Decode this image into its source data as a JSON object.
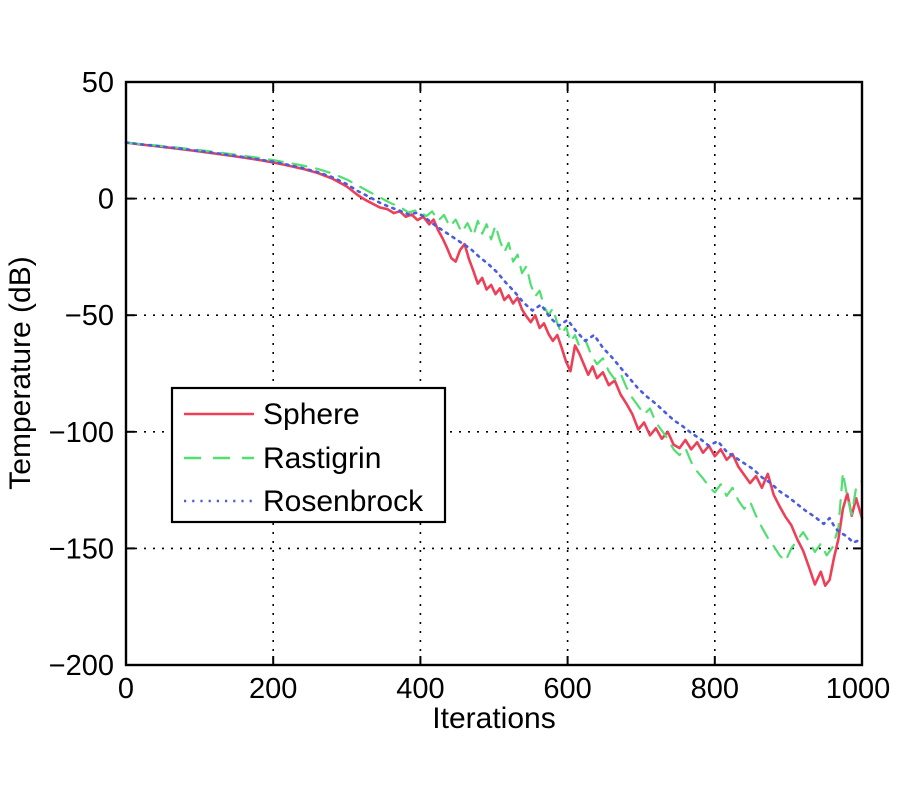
{
  "figure": {
    "background": "#ffffff",
    "grid_color": "#000000",
    "axis_color": "#000000"
  },
  "chart_data": {
    "type": "line",
    "title": "",
    "xlabel": "Iterations",
    "ylabel": "Temperature (dB)",
    "xlim": [
      0,
      1000
    ],
    "ylim": [
      -200,
      50
    ],
    "xticks": {
      "values": [
        0,
        200,
        400,
        600,
        800,
        1000
      ],
      "labels": [
        "0",
        "200",
        "400",
        "600",
        "800",
        "1000"
      ]
    },
    "yticks": {
      "values": [
        50,
        0,
        -50,
        -100,
        -150,
        -200
      ],
      "labels": [
        "50",
        "0",
        "−50",
        "−100",
        "−150",
        "−200"
      ]
    },
    "grid": true,
    "legend": {
      "position": "inside-left",
      "border": "#000000",
      "background": "#ffffff"
    },
    "series": [
      {
        "name": "Sphere",
        "color": "#ed4058",
        "style": "solid",
        "points": [
          [
            0,
            24
          ],
          [
            20,
            23.2
          ],
          [
            40,
            22.5
          ],
          [
            60,
            21.8
          ],
          [
            80,
            21.0
          ],
          [
            100,
            20.2
          ],
          [
            120,
            19.4
          ],
          [
            140,
            18.5
          ],
          [
            160,
            17.6
          ],
          [
            180,
            16.6
          ],
          [
            200,
            15.5
          ],
          [
            220,
            14.2
          ],
          [
            240,
            12.8
          ],
          [
            260,
            11.0
          ],
          [
            280,
            8.6
          ],
          [
            300,
            5.2
          ],
          [
            315,
            1.5
          ],
          [
            325,
            -0.5
          ],
          [
            335,
            -2.2
          ],
          [
            345,
            -3.8
          ],
          [
            355,
            -4.5
          ],
          [
            364,
            -6.2
          ],
          [
            372,
            -5.4
          ],
          [
            380,
            -7.8
          ],
          [
            388,
            -6.8
          ],
          [
            396,
            -9.2
          ],
          [
            404,
            -7.8
          ],
          [
            412,
            -11.0
          ],
          [
            418,
            -9.0
          ],
          [
            424,
            -13.5
          ],
          [
            430,
            -17.0
          ],
          [
            436,
            -21.0
          ],
          [
            442,
            -25.5
          ],
          [
            448,
            -27.0
          ],
          [
            454,
            -22.0
          ],
          [
            460,
            -19.5
          ],
          [
            466,
            -26.0
          ],
          [
            472,
            -31.0
          ],
          [
            478,
            -36.5
          ],
          [
            484,
            -34.0
          ],
          [
            490,
            -39.0
          ],
          [
            496,
            -37.0
          ],
          [
            502,
            -41.0
          ],
          [
            508,
            -38.5
          ],
          [
            514,
            -43.5
          ],
          [
            520,
            -41.5
          ],
          [
            526,
            -45.0
          ],
          [
            532,
            -42.5
          ],
          [
            538,
            -47.5
          ],
          [
            544,
            -50.5
          ],
          [
            550,
            -53.0
          ],
          [
            556,
            -50.0
          ],
          [
            562,
            -55.5
          ],
          [
            568,
            -53.5
          ],
          [
            574,
            -58.0
          ],
          [
            580,
            -61.0
          ],
          [
            586,
            -58.5
          ],
          [
            592,
            -64.0
          ],
          [
            598,
            -70.0
          ],
          [
            604,
            -74.0
          ],
          [
            610,
            -63.0
          ],
          [
            616,
            -66.5
          ],
          [
            622,
            -71.0
          ],
          [
            628,
            -75.5
          ],
          [
            634,
            -72.0
          ],
          [
            640,
            -77.0
          ],
          [
            648,
            -74.5
          ],
          [
            656,
            -80.0
          ],
          [
            664,
            -78.0
          ],
          [
            672,
            -84.0
          ],
          [
            680,
            -88.0
          ],
          [
            688,
            -92.5
          ],
          [
            696,
            -99.0
          ],
          [
            704,
            -96.0
          ],
          [
            712,
            -101.5
          ],
          [
            720,
            -98.5
          ],
          [
            728,
            -103.0
          ],
          [
            736,
            -100.0
          ],
          [
            744,
            -105.5
          ],
          [
            752,
            -107.0
          ],
          [
            760,
            -103.5
          ],
          [
            768,
            -107.5
          ],
          [
            776,
            -104.5
          ],
          [
            784,
            -109.0
          ],
          [
            792,
            -106.0
          ],
          [
            800,
            -110.5
          ],
          [
            808,
            -107.5
          ],
          [
            816,
            -112.0
          ],
          [
            824,
            -109.5
          ],
          [
            832,
            -115.0
          ],
          [
            840,
            -118.5
          ],
          [
            848,
            -122.0
          ],
          [
            856,
            -119.0
          ],
          [
            864,
            -124.0
          ],
          [
            872,
            -118.0
          ],
          [
            880,
            -127.0
          ],
          [
            888,
            -132.0
          ],
          [
            896,
            -136.5
          ],
          [
            904,
            -140.0
          ],
          [
            912,
            -146.0
          ],
          [
            920,
            -151.0
          ],
          [
            928,
            -158.0
          ],
          [
            936,
            -165.5
          ],
          [
            944,
            -160.0
          ],
          [
            950,
            -166.0
          ],
          [
            956,
            -163.5
          ],
          [
            962,
            -154.0
          ],
          [
            968,
            -146.0
          ],
          [
            974,
            -133.0
          ],
          [
            980,
            -126.5
          ],
          [
            986,
            -136.0
          ],
          [
            992,
            -128.5
          ],
          [
            1000,
            -137.0
          ]
        ]
      },
      {
        "name": "Rastigrin",
        "color": "#52df72",
        "style": "dashed",
        "points": [
          [
            0,
            24
          ],
          [
            20,
            23.4
          ],
          [
            40,
            22.8
          ],
          [
            60,
            22.2
          ],
          [
            80,
            21.5
          ],
          [
            100,
            20.8
          ],
          [
            120,
            20.0
          ],
          [
            140,
            19.2
          ],
          [
            160,
            18.4
          ],
          [
            180,
            17.5
          ],
          [
            200,
            16.5
          ],
          [
            220,
            15.4
          ],
          [
            240,
            14.2
          ],
          [
            260,
            12.8
          ],
          [
            280,
            10.8
          ],
          [
            300,
            8.2
          ],
          [
            315,
            5.6
          ],
          [
            330,
            3.0
          ],
          [
            345,
            0.5
          ],
          [
            360,
            -2.0
          ],
          [
            372,
            -3.5
          ],
          [
            384,
            -6.0
          ],
          [
            396,
            -4.8
          ],
          [
            408,
            -7.5
          ],
          [
            416,
            -5.5
          ],
          [
            424,
            -9.5
          ],
          [
            432,
            -7.0
          ],
          [
            440,
            -12.0
          ],
          [
            448,
            -9.0
          ],
          [
            456,
            -14.5
          ],
          [
            464,
            -10.5
          ],
          [
            472,
            -16.0
          ],
          [
            478,
            -9.5
          ],
          [
            484,
            -15.0
          ],
          [
            490,
            -11.0
          ],
          [
            496,
            -17.5
          ],
          [
            502,
            -11.5
          ],
          [
            508,
            -18.0
          ],
          [
            514,
            -23.0
          ],
          [
            520,
            -19.0
          ],
          [
            526,
            -27.0
          ],
          [
            532,
            -24.0
          ],
          [
            538,
            -32.0
          ],
          [
            544,
            -29.0
          ],
          [
            550,
            -37.0
          ],
          [
            556,
            -42.0
          ],
          [
            562,
            -39.5
          ],
          [
            568,
            -46.0
          ],
          [
            574,
            -50.0
          ],
          [
            580,
            -47.0
          ],
          [
            586,
            -53.5
          ],
          [
            592,
            -58.0
          ],
          [
            598,
            -55.0
          ],
          [
            604,
            -61.5
          ],
          [
            610,
            -58.5
          ],
          [
            616,
            -63.5
          ],
          [
            624,
            -60.5
          ],
          [
            632,
            -67.0
          ],
          [
            640,
            -71.0
          ],
          [
            648,
            -68.5
          ],
          [
            656,
            -74.0
          ],
          [
            664,
            -77.5
          ],
          [
            672,
            -75.0
          ],
          [
            680,
            -81.0
          ],
          [
            688,
            -85.5
          ],
          [
            696,
            -89.0
          ],
          [
            704,
            -92.5
          ],
          [
            712,
            -90.0
          ],
          [
            720,
            -96.0
          ],
          [
            728,
            -99.5
          ],
          [
            736,
            -103.0
          ],
          [
            744,
            -107.5
          ],
          [
            752,
            -110.0
          ],
          [
            760,
            -107.0
          ],
          [
            768,
            -113.0
          ],
          [
            776,
            -117.0
          ],
          [
            784,
            -120.0
          ],
          [
            792,
            -123.5
          ],
          [
            800,
            -126.0
          ],
          [
            808,
            -122.5
          ],
          [
            816,
            -127.5
          ],
          [
            824,
            -124.0
          ],
          [
            832,
            -129.5
          ],
          [
            840,
            -133.0
          ],
          [
            848,
            -130.0
          ],
          [
            856,
            -136.0
          ],
          [
            864,
            -141.0
          ],
          [
            872,
            -145.5
          ],
          [
            880,
            -149.0
          ],
          [
            888,
            -153.0
          ],
          [
            896,
            -155.5
          ],
          [
            904,
            -150.0
          ],
          [
            912,
            -146.5
          ],
          [
            920,
            -143.0
          ],
          [
            928,
            -147.0
          ],
          [
            936,
            -151.5
          ],
          [
            944,
            -148.0
          ],
          [
            952,
            -153.0
          ],
          [
            960,
            -149.5
          ],
          [
            968,
            -141.0
          ],
          [
            974,
            -117.5
          ],
          [
            980,
            -128.0
          ],
          [
            986,
            -135.5
          ],
          [
            992,
            -124.0
          ],
          [
            1000,
            -121.0
          ]
        ]
      },
      {
        "name": "Rosenbrock",
        "color": "#4a5ce0",
        "style": "dotted",
        "points": [
          [
            0,
            24
          ],
          [
            20,
            23.3
          ],
          [
            40,
            22.6
          ],
          [
            60,
            21.9
          ],
          [
            80,
            21.2
          ],
          [
            100,
            20.4
          ],
          [
            120,
            19.6
          ],
          [
            140,
            18.7
          ],
          [
            160,
            17.8
          ],
          [
            180,
            16.8
          ],
          [
            200,
            15.8
          ],
          [
            220,
            14.5
          ],
          [
            240,
            13.1
          ],
          [
            260,
            11.4
          ],
          [
            280,
            9.2
          ],
          [
            300,
            6.2
          ],
          [
            315,
            3.2
          ],
          [
            330,
            0.8
          ],
          [
            345,
            -1.8
          ],
          [
            360,
            -3.8
          ],
          [
            372,
            -5.2
          ],
          [
            384,
            -6.8
          ],
          [
            396,
            -6.0
          ],
          [
            408,
            -8.5
          ],
          [
            420,
            -11.5
          ],
          [
            432,
            -14.0
          ],
          [
            444,
            -16.5
          ],
          [
            456,
            -19.0
          ],
          [
            468,
            -21.5
          ],
          [
            480,
            -25.0
          ],
          [
            492,
            -28.0
          ],
          [
            504,
            -31.5
          ],
          [
            516,
            -36.0
          ],
          [
            528,
            -40.0
          ],
          [
            540,
            -44.5
          ],
          [
            552,
            -48.0
          ],
          [
            564,
            -45.5
          ],
          [
            576,
            -51.0
          ],
          [
            588,
            -54.5
          ],
          [
            600,
            -52.0
          ],
          [
            612,
            -57.0
          ],
          [
            624,
            -61.0
          ],
          [
            636,
            -58.5
          ],
          [
            648,
            -64.0
          ],
          [
            660,
            -68.0
          ],
          [
            672,
            -72.5
          ],
          [
            684,
            -77.0
          ],
          [
            696,
            -81.5
          ],
          [
            708,
            -85.0
          ],
          [
            720,
            -88.0
          ],
          [
            732,
            -91.5
          ],
          [
            744,
            -95.0
          ],
          [
            756,
            -97.5
          ],
          [
            768,
            -100.5
          ],
          [
            780,
            -103.0
          ],
          [
            792,
            -106.0
          ],
          [
            804,
            -104.0
          ],
          [
            816,
            -108.5
          ],
          [
            828,
            -111.0
          ],
          [
            840,
            -113.5
          ],
          [
            852,
            -116.0
          ],
          [
            864,
            -119.5
          ],
          [
            876,
            -122.0
          ],
          [
            888,
            -125.5
          ],
          [
            900,
            -128.0
          ],
          [
            912,
            -131.0
          ],
          [
            924,
            -134.0
          ],
          [
            936,
            -136.5
          ],
          [
            948,
            -139.5
          ],
          [
            956,
            -137.0
          ],
          [
            964,
            -141.5
          ],
          [
            972,
            -143.5
          ],
          [
            980,
            -145.0
          ],
          [
            988,
            -147.5
          ],
          [
            1000,
            -146.0
          ]
        ]
      }
    ]
  }
}
